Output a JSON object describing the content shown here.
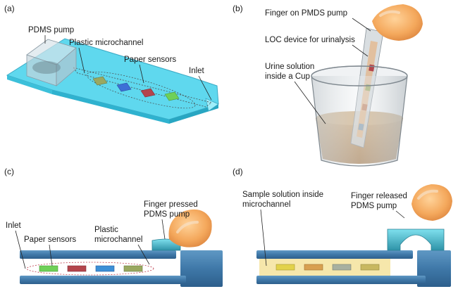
{
  "panels": {
    "a": {
      "label": "(a)",
      "pdms_pump": "PDMS pump",
      "plastic_microchannel": "Plastic microchannel",
      "paper_sensors": "Paper sensors",
      "inlet": "Inlet"
    },
    "b": {
      "label": "(b)",
      "finger_on_pump": "Finger on PMDS pump",
      "loc_device": "LOC device for urinalysis",
      "urine_line1": "Urine solution",
      "urine_line2": "inside a Cup"
    },
    "c": {
      "label": "(c)",
      "finger_line1": "Finger pressed",
      "finger_line2": "PDMS pump",
      "inlet": "Inlet",
      "paper_sensors": "Paper sensors",
      "plastic_line1": "Plastic",
      "plastic_line2": "microchannel"
    },
    "d": {
      "label": "(d)",
      "sample_line1": "Sample solution inside",
      "sample_line2": "microchannel",
      "finger_line1": "Finger released",
      "finger_line2": "PDMS pump"
    }
  },
  "colors": {
    "channel_cyan": "#58d8ee",
    "slab_blue": "#3f78a8",
    "pump_teal": "#46b8cc",
    "sensor_green": "#6fd058",
    "sensor_red": "#b4454c",
    "sensor_blue": "#3d6fd6",
    "sensor_olive": "#9aa860",
    "urine": "#b9956b",
    "finger": "#f0a050",
    "sample_fill": "#f5e39c"
  }
}
